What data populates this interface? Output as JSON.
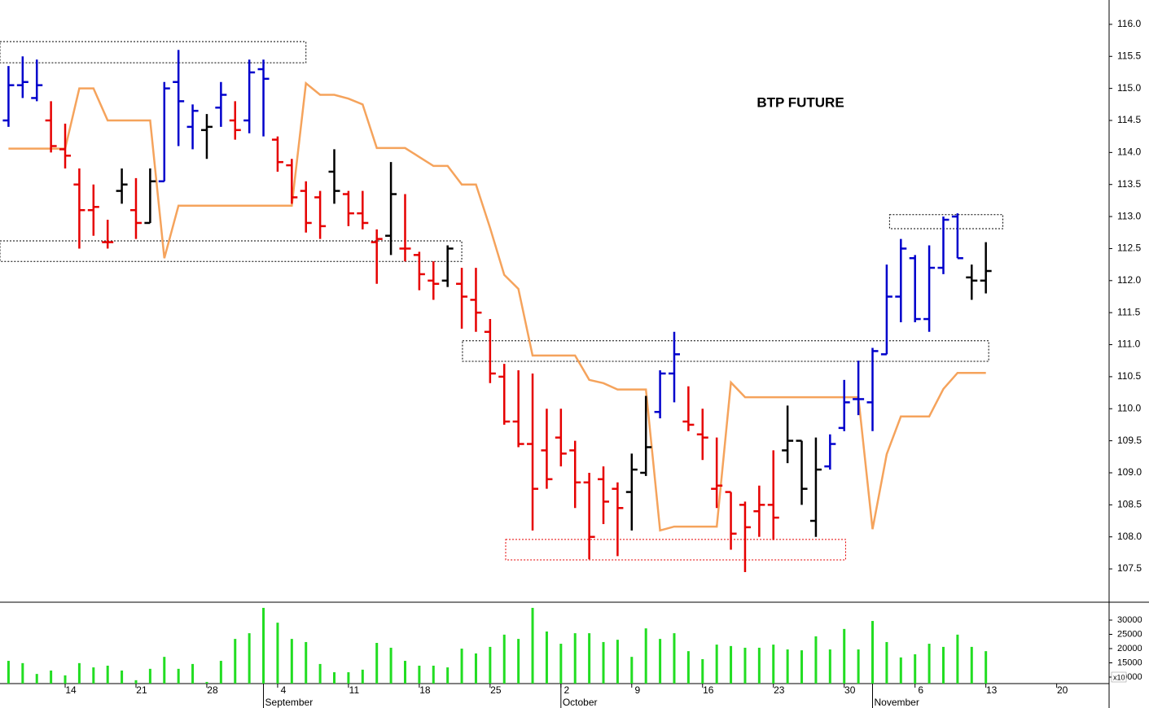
{
  "chart_data": [
    {
      "type": "ohlc",
      "title": "BTP FUTURE",
      "x": [
        0,
        1,
        2,
        3,
        4,
        5,
        6,
        7,
        8,
        9,
        10,
        11,
        12,
        13,
        14,
        15,
        16,
        17,
        18,
        19,
        20,
        21,
        22,
        23,
        24,
        25,
        26,
        27,
        28,
        29,
        30,
        31,
        32,
        33,
        34,
        35,
        36,
        37,
        38,
        39,
        40,
        41,
        42,
        43,
        44,
        45,
        46,
        47,
        48,
        49,
        50,
        51,
        52,
        53,
        54,
        55,
        56,
        57,
        58,
        59,
        60,
        61,
        62,
        63,
        64,
        65,
        66,
        67,
        68,
        69
      ],
      "open": [
        114.5,
        115.05,
        114.85,
        114.5,
        114.05,
        113.5,
        113.1,
        112.6,
        113.4,
        113.1,
        112.9,
        113.55,
        115.1,
        114.4,
        114.35,
        114.7,
        114.5,
        114.5,
        115.3,
        114.2,
        113.8,
        113.4,
        113.3,
        113.7,
        113.35,
        113.05,
        112.6,
        112.7,
        112.5,
        112.4,
        112.0,
        112.0,
        111.95,
        111.7,
        111.2,
        110.5,
        109.8,
        109.45,
        109.35,
        109.55,
        109.35,
        108.85,
        108.9,
        108.75,
        108.7,
        109.0,
        109.95,
        110.55,
        109.8,
        109.6,
        108.75,
        108.7,
        108.5,
        108.4,
        108.5,
        109.35,
        109.5,
        108.25,
        109.1,
        109.7,
        110.15,
        110.1,
        110.85,
        111.75,
        112.35,
        111.4,
        112.2,
        113.0,
        112.05,
        112.0
      ],
      "high": [
        115.35,
        115.5,
        115.45,
        114.8,
        114.45,
        113.75,
        113.5,
        112.95,
        113.75,
        113.6,
        113.75,
        115.1,
        115.6,
        114.75,
        114.6,
        115.1,
        114.8,
        115.45,
        115.45,
        114.25,
        113.9,
        113.55,
        113.4,
        114.05,
        113.4,
        113.4,
        112.8,
        113.85,
        113.35,
        112.45,
        112.3,
        112.55,
        112.2,
        112.2,
        111.4,
        110.7,
        110.6,
        110.55,
        110.0,
        110.0,
        109.5,
        109.0,
        109.1,
        108.85,
        109.3,
        110.2,
        110.6,
        111.2,
        110.35,
        110.0,
        109.55,
        108.7,
        108.55,
        108.8,
        109.35,
        110.05,
        109.5,
        109.55,
        109.6,
        110.45,
        110.75,
        110.95,
        112.25,
        112.65,
        112.4,
        112.55,
        113.0,
        113.05,
        112.25,
        112.6
      ],
      "low": [
        114.4,
        114.85,
        114.8,
        114.0,
        113.75,
        112.5,
        112.7,
        112.5,
        113.2,
        112.65,
        112.9,
        113.55,
        114.1,
        114.05,
        113.9,
        114.4,
        114.2,
        114.3,
        114.25,
        113.7,
        113.2,
        112.75,
        112.65,
        113.2,
        112.85,
        112.8,
        111.95,
        112.4,
        112.3,
        111.85,
        111.7,
        111.9,
        111.25,
        111.2,
        110.4,
        109.75,
        109.4,
        108.1,
        108.75,
        109.1,
        108.45,
        107.65,
        108.2,
        107.7,
        108.1,
        108.95,
        109.85,
        110.1,
        109.65,
        109.2,
        108.45,
        107.8,
        107.45,
        108.0,
        107.95,
        109.15,
        108.5,
        108.0,
        109.05,
        109.65,
        109.9,
        109.65,
        110.85,
        111.35,
        111.35,
        111.2,
        112.1,
        112.35,
        111.7,
        111.8
      ],
      "close": [
        115.05,
        115.1,
        115.05,
        114.1,
        113.95,
        113.1,
        113.15,
        112.6,
        113.5,
        112.9,
        113.55,
        115.0,
        114.8,
        114.65,
        114.4,
        114.9,
        114.35,
        115.25,
        115.15,
        113.85,
        113.3,
        112.9,
        112.85,
        113.4,
        113.05,
        112.9,
        112.65,
        113.35,
        112.5,
        112.1,
        111.95,
        112.5,
        111.75,
        111.5,
        110.55,
        109.8,
        109.45,
        108.75,
        108.9,
        109.3,
        108.85,
        108.0,
        108.55,
        108.45,
        109.05,
        109.4,
        110.55,
        110.85,
        109.75,
        109.55,
        108.8,
        108.05,
        108.15,
        108.5,
        108.3,
        109.5,
        108.75,
        109.05,
        109.45,
        110.1,
        110.15,
        110.9,
        111.75,
        112.5,
        111.4,
        112.2,
        112.95,
        112.35,
        112.0,
        112.15
      ],
      "colors": [
        "#0000cc",
        "#0000cc",
        "#0000cc",
        "#e60000",
        "#e60000",
        "#e60000",
        "#e60000",
        "#e60000",
        "#000000",
        "#e60000",
        "#000000",
        "#0000cc",
        "#0000cc",
        "#0000cc",
        "#000000",
        "#0000cc",
        "#e60000",
        "#0000cc",
        "#0000cc",
        "#e60000",
        "#e60000",
        "#e60000",
        "#e60000",
        "#000000",
        "#e60000",
        "#e60000",
        "#e60000",
        "#000000",
        "#e60000",
        "#e60000",
        "#e60000",
        "#000000",
        "#e60000",
        "#e60000",
        "#e60000",
        "#e60000",
        "#e60000",
        "#e60000",
        "#e60000",
        "#e60000",
        "#e60000",
        "#e60000",
        "#e60000",
        "#e60000",
        "#000000",
        "#000000",
        "#0000cc",
        "#0000cc",
        "#e60000",
        "#e60000",
        "#e60000",
        "#e60000",
        "#e60000",
        "#e60000",
        "#e60000",
        "#000000",
        "#000000",
        "#000000",
        "#0000cc",
        "#0000cc",
        "#0000cc",
        "#0000cc",
        "#0000cc",
        "#0000cc",
        "#0000cc",
        "#0000cc",
        "#0000cc",
        "#0000cc",
        "#000000",
        "#000000"
      ],
      "line": {
        "color": "#f5a35c",
        "values": [
          114.06,
          114.06,
          114.06,
          114.06,
          114.06,
          115.0,
          115.0,
          114.5,
          114.5,
          114.5,
          114.5,
          112.35,
          113.17,
          113.17,
          113.17,
          113.17,
          113.17,
          113.17,
          113.17,
          113.17,
          113.17,
          115.08,
          114.9,
          114.9,
          114.84,
          114.75,
          114.07,
          114.07,
          114.07,
          113.93,
          113.79,
          113.79,
          113.5,
          113.5,
          112.82,
          112.09,
          111.87,
          110.83,
          110.83,
          110.83,
          110.83,
          110.45,
          110.4,
          110.3,
          110.3,
          110.3,
          108.1,
          108.16,
          108.16,
          108.16,
          108.16,
          110.41,
          110.18,
          110.18,
          110.18,
          110.18,
          110.18,
          110.18,
          110.18,
          110.18,
          110.18,
          108.12,
          109.29,
          109.88,
          109.88,
          109.88,
          110.31,
          110.56,
          110.56,
          110.56
        ]
      },
      "zones": [
        {
          "x": [
            -0.6,
            21
          ],
          "y": [
            115.4,
            115.73
          ],
          "color": "#000000"
        },
        {
          "x": [
            -0.6,
            32
          ],
          "y": [
            112.3,
            112.62
          ],
          "color": "#000000"
        },
        {
          "x": [
            32.05,
            69.2
          ],
          "y": [
            110.74,
            111.06
          ],
          "color": "#000000"
        },
        {
          "x": [
            62.2,
            70.2
          ],
          "y": [
            112.81,
            113.03
          ],
          "color": "#000000"
        },
        {
          "x": [
            35.1,
            59.1
          ],
          "y": [
            107.64,
            107.96
          ],
          "color": "#e60000"
        }
      ],
      "xlim": [
        -0.6,
        77.7
      ],
      "ylim": [
        106.98,
        116.38
      ],
      "yticks": [
        107.5,
        {
          "value": 108,
          "label": "108.0"
        },
        108.5,
        {
          "value": 109,
          "label": "109.0"
        },
        109.5,
        {
          "value": 110,
          "label": "110.0"
        },
        110.5,
        {
          "value": 111,
          "label": "111.0"
        },
        111.5,
        {
          "value": 112,
          "label": "112.0"
        },
        112.5,
        {
          "value": 113,
          "label": "113.0"
        },
        113.5,
        {
          "value": 114,
          "label": "114.0"
        },
        114.5,
        {
          "value": 115,
          "label": "115.0"
        },
        115.5,
        {
          "value": 116,
          "label": "116.0"
        }
      ]
    },
    {
      "type": "bar",
      "x": [
        0,
        1,
        2,
        3,
        4,
        5,
        6,
        7,
        8,
        9,
        10,
        11,
        12,
        13,
        14,
        15,
        16,
        17,
        18,
        19,
        20,
        21,
        22,
        23,
        24,
        25,
        26,
        27,
        28,
        29,
        30,
        31,
        32,
        33,
        34,
        35,
        36,
        37,
        38,
        39,
        40,
        41,
        42,
        43,
        44,
        45,
        46,
        47,
        48,
        49,
        50,
        51,
        52,
        53,
        54,
        55,
        56,
        57,
        58,
        59,
        60,
        61,
        62,
        63,
        64,
        65,
        66,
        67,
        68,
        69
      ],
      "values": [
        15700,
        14900,
        11100,
        12300,
        10600,
        14900,
        13400,
        14000,
        12300,
        8900,
        12900,
        17100,
        12900,
        14600,
        8300,
        15700,
        23400,
        25400,
        34300,
        29100,
        23400,
        22300,
        14600,
        11700,
        11700,
        12600,
        22000,
        20300,
        15700,
        14000,
        14000,
        13400,
        20000,
        18300,
        20600,
        24900,
        23400,
        34300,
        26000,
        21700,
        25400,
        25400,
        22300,
        23100,
        17100,
        27100,
        23400,
        25400,
        19100,
        16300,
        21400,
        20900,
        20300,
        20300,
        21400,
        19700,
        19400,
        24300,
        19700,
        26900,
        19700,
        29700,
        22300,
        16900,
        18000,
        21700,
        20600,
        24900,
        20600,
        19100
      ],
      "color": "#22dd22",
      "xlim": [
        -0.6,
        77.7
      ],
      "ylim": [
        7714,
        36286
      ],
      "yticks": [
        10000,
        15000,
        20000,
        25000,
        30000
      ],
      "scale_label": "x10",
      "xticks": [
        {
          "value": 4,
          "label": "14"
        },
        {
          "value": 9,
          "label": "21"
        },
        {
          "value": 14,
          "label": "28"
        },
        {
          "value": 19,
          "label": "4"
        },
        {
          "value": 24,
          "label": "11"
        },
        {
          "value": 29,
          "label": "18"
        },
        {
          "value": 34,
          "label": "25"
        },
        {
          "value": 39,
          "label": "2"
        },
        {
          "value": 44,
          "label": "9"
        },
        {
          "value": 49,
          "label": "16"
        },
        {
          "value": 54,
          "label": "23"
        },
        {
          "value": 59,
          "label": "30"
        },
        {
          "value": 64,
          "label": "6"
        },
        {
          "value": 69,
          "label": "13"
        },
        {
          "value": 74,
          "label": "20"
        }
      ],
      "month_ticks": [
        {
          "value": 18,
          "label": "September"
        },
        {
          "value": 39,
          "label": "October"
        },
        {
          "value": 61,
          "label": "November"
        }
      ]
    }
  ]
}
